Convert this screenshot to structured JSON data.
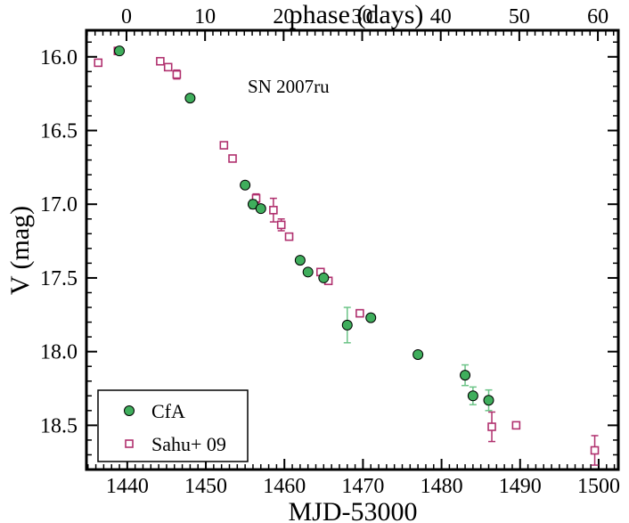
{
  "chart_data": {
    "type": "scatter",
    "title": "",
    "annotation": "SN 2007ru",
    "xlabel": "MJD-53000",
    "ylabel": "V (mag)",
    "x2label": "phase (days)",
    "xlim": [
      1434.8,
      1502.5
    ],
    "ylim": [
      18.8,
      15.82
    ],
    "y_inverted": true,
    "xticks": [
      1440,
      1450,
      1460,
      1470,
      1480,
      1490,
      1500
    ],
    "yticks": [
      16.0,
      16.5,
      17.0,
      17.5,
      18.0,
      18.5
    ],
    "ytick_labels": [
      "16.0",
      "16.5",
      "17.0",
      "17.5",
      "18.0",
      "18.5"
    ],
    "phase_offset_mjd": 1439.9,
    "x2ticks": [
      0,
      10,
      20,
      30,
      40,
      50,
      60
    ],
    "legend_position": "bottom-left",
    "series": [
      {
        "name": "CfA",
        "marker": "circle",
        "color": "#3fae5c",
        "x": [
          1439.0,
          1448.0,
          1455.0,
          1456.0,
          1457.0,
          1462.0,
          1463.0,
          1465.0,
          1468.0,
          1471.0,
          1477.0,
          1483.0,
          1484.0,
          1486.0
        ],
        "y": [
          15.96,
          16.28,
          16.87,
          17.0,
          17.03,
          17.38,
          17.46,
          17.5,
          17.82,
          17.77,
          18.02,
          18.16,
          18.3,
          18.33
        ],
        "yerr": [
          0.02,
          0.02,
          0.02,
          0.03,
          0.02,
          0.02,
          0.02,
          0.02,
          0.12,
          0.02,
          0.02,
          0.07,
          0.06,
          0.07
        ]
      },
      {
        "name": "Sahu+ 09",
        "marker": "square",
        "color": "#b0306e",
        "x": [
          1436.3,
          1438.8,
          1444.2,
          1445.2,
          1446.3,
          1452.3,
          1453.4,
          1456.4,
          1458.6,
          1459.6,
          1460.6,
          1464.6,
          1465.6,
          1469.6,
          1486.4,
          1489.5,
          1499.5
        ],
        "y": [
          16.04,
          15.96,
          16.03,
          16.07,
          16.12,
          16.6,
          16.69,
          16.96,
          17.04,
          17.14,
          17.22,
          17.46,
          17.52,
          17.74,
          18.51,
          18.5,
          18.67
        ],
        "yerr": [
          0.02,
          0.02,
          0.02,
          0.02,
          0.03,
          0.02,
          0.02,
          0.03,
          0.08,
          0.04,
          0.02,
          0.02,
          0.02,
          0.02,
          0.1,
          0.02,
          0.1
        ]
      }
    ]
  },
  "colors": {
    "cfa_fill": "#3fae5c",
    "cfa_errorbar": "#6cc487",
    "sahu_stroke": "#b0306e"
  }
}
